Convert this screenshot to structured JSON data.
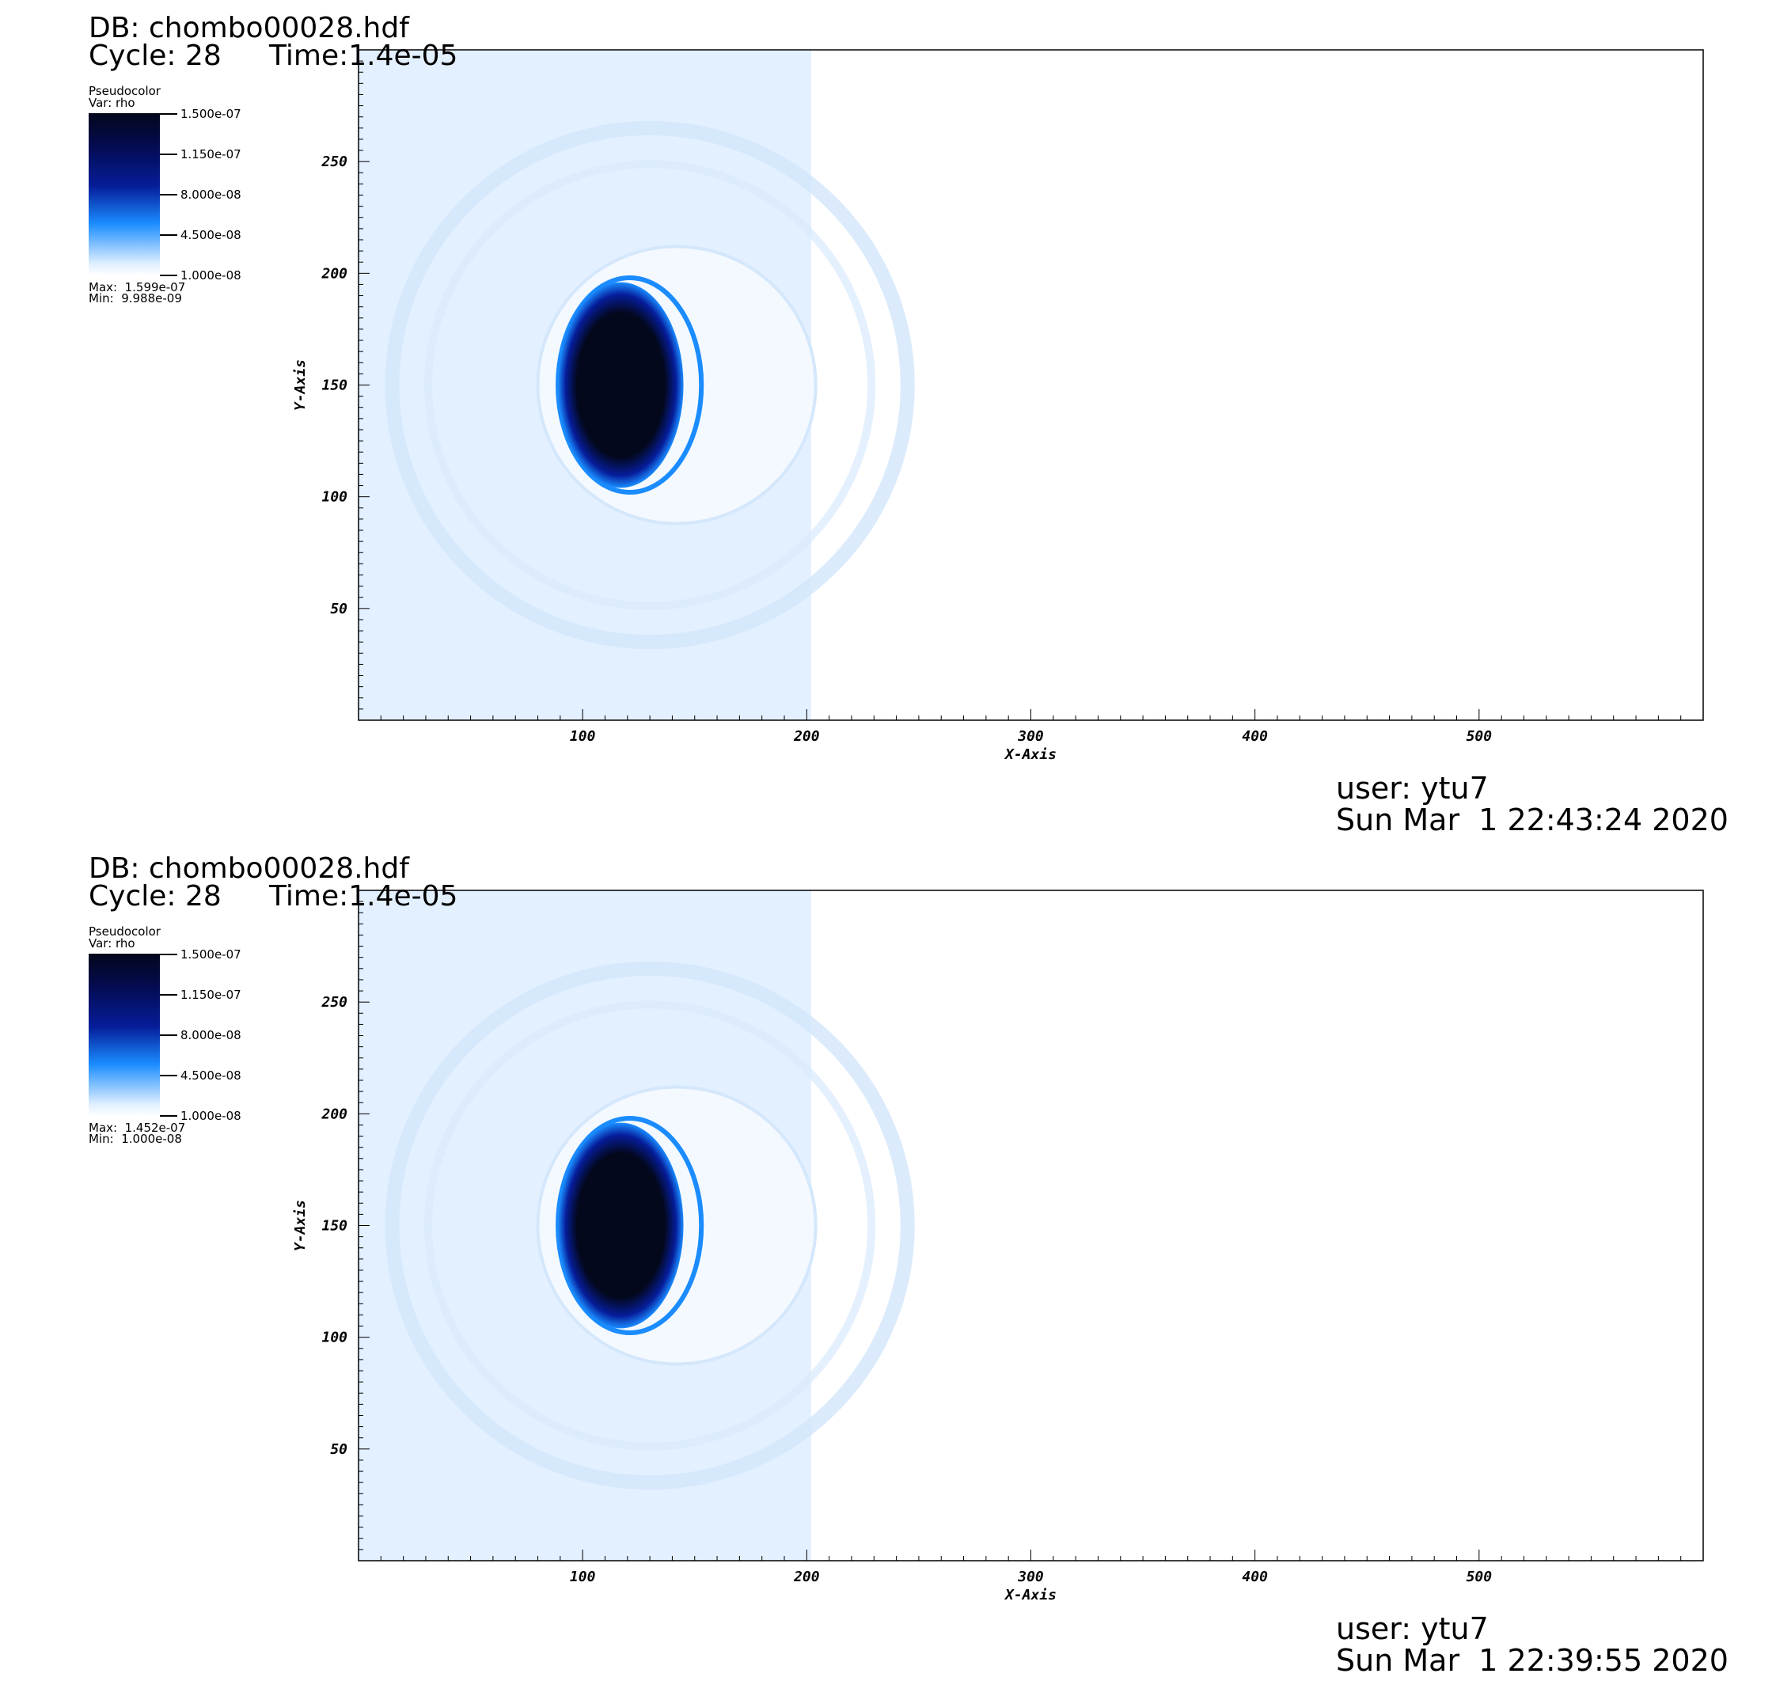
{
  "panels": [
    {
      "db": "DB: chombo00028.hdf",
      "cycle": "Cycle: 28",
      "time": "Time:1.4e-05",
      "legend": {
        "title": "Pseudocolor",
        "var": "Var: rho",
        "ticks": [
          "1.500e-07",
          "1.150e-07",
          "8.000e-08",
          "4.500e-08",
          "1.000e-08"
        ],
        "max": "Max:  1.599e-07",
        "min": "Min:  9.988e-09"
      },
      "user": "user: ytu7",
      "date": "Sun Mar  1 22:43:24 2020"
    },
    {
      "db": "DB: chombo00028.hdf",
      "cycle": "Cycle: 28",
      "time": "Time:1.4e-05",
      "legend": {
        "title": "Pseudocolor",
        "var": "Var: rho",
        "ticks": [
          "1.500e-07",
          "1.150e-07",
          "8.000e-08",
          "4.500e-08",
          "1.000e-08"
        ],
        "max": "Max:  1.452e-07",
        "min": "Min:  1.000e-08"
      },
      "user": "user: ytu7",
      "date": "Sun Mar  1 22:39:55 2020"
    }
  ],
  "chart_data": [
    {
      "type": "heatmap",
      "xlabel": "X-Axis",
      "ylabel": "Y-Axis",
      "xlim": [
        0,
        600
      ],
      "ylim": [
        0,
        300
      ],
      "xticks": [
        100,
        200,
        300,
        400,
        500
      ],
      "yticks": [
        50,
        100,
        150,
        200,
        250
      ],
      "variable": "rho",
      "colorscale": {
        "min": 1e-08,
        "max": 1.5e-07
      },
      "colors": {
        "dark": "#03081c",
        "mid": "#061d9a",
        "bright": "#1a8cff",
        "light": "#e3f0ff"
      },
      "features": {
        "filled_region_x_max": 202,
        "dense_blob_center": [
          117,
          150
        ],
        "dense_blob_radius": [
          28,
          46
        ],
        "shell_center": [
          130,
          150
        ],
        "shell_radius": 115
      }
    },
    {
      "type": "heatmap",
      "xlabel": "X-Axis",
      "ylabel": "Y-Axis",
      "xlim": [
        0,
        600
      ],
      "ylim": [
        0,
        300
      ],
      "xticks": [
        100,
        200,
        300,
        400,
        500
      ],
      "yticks": [
        50,
        100,
        150,
        200,
        250
      ],
      "variable": "rho",
      "colorscale": {
        "min": 1e-08,
        "max": 1.5e-07
      },
      "colors": {
        "dark": "#03081c",
        "mid": "#061d9a",
        "bright": "#1a8cff",
        "light": "#e3f0ff"
      },
      "features": {
        "filled_region_x_max": 202,
        "dense_blob_center": [
          117,
          150
        ],
        "dense_blob_radius": [
          28,
          46
        ],
        "shell_center": [
          130,
          150
        ],
        "shell_radius": 115
      }
    }
  ]
}
